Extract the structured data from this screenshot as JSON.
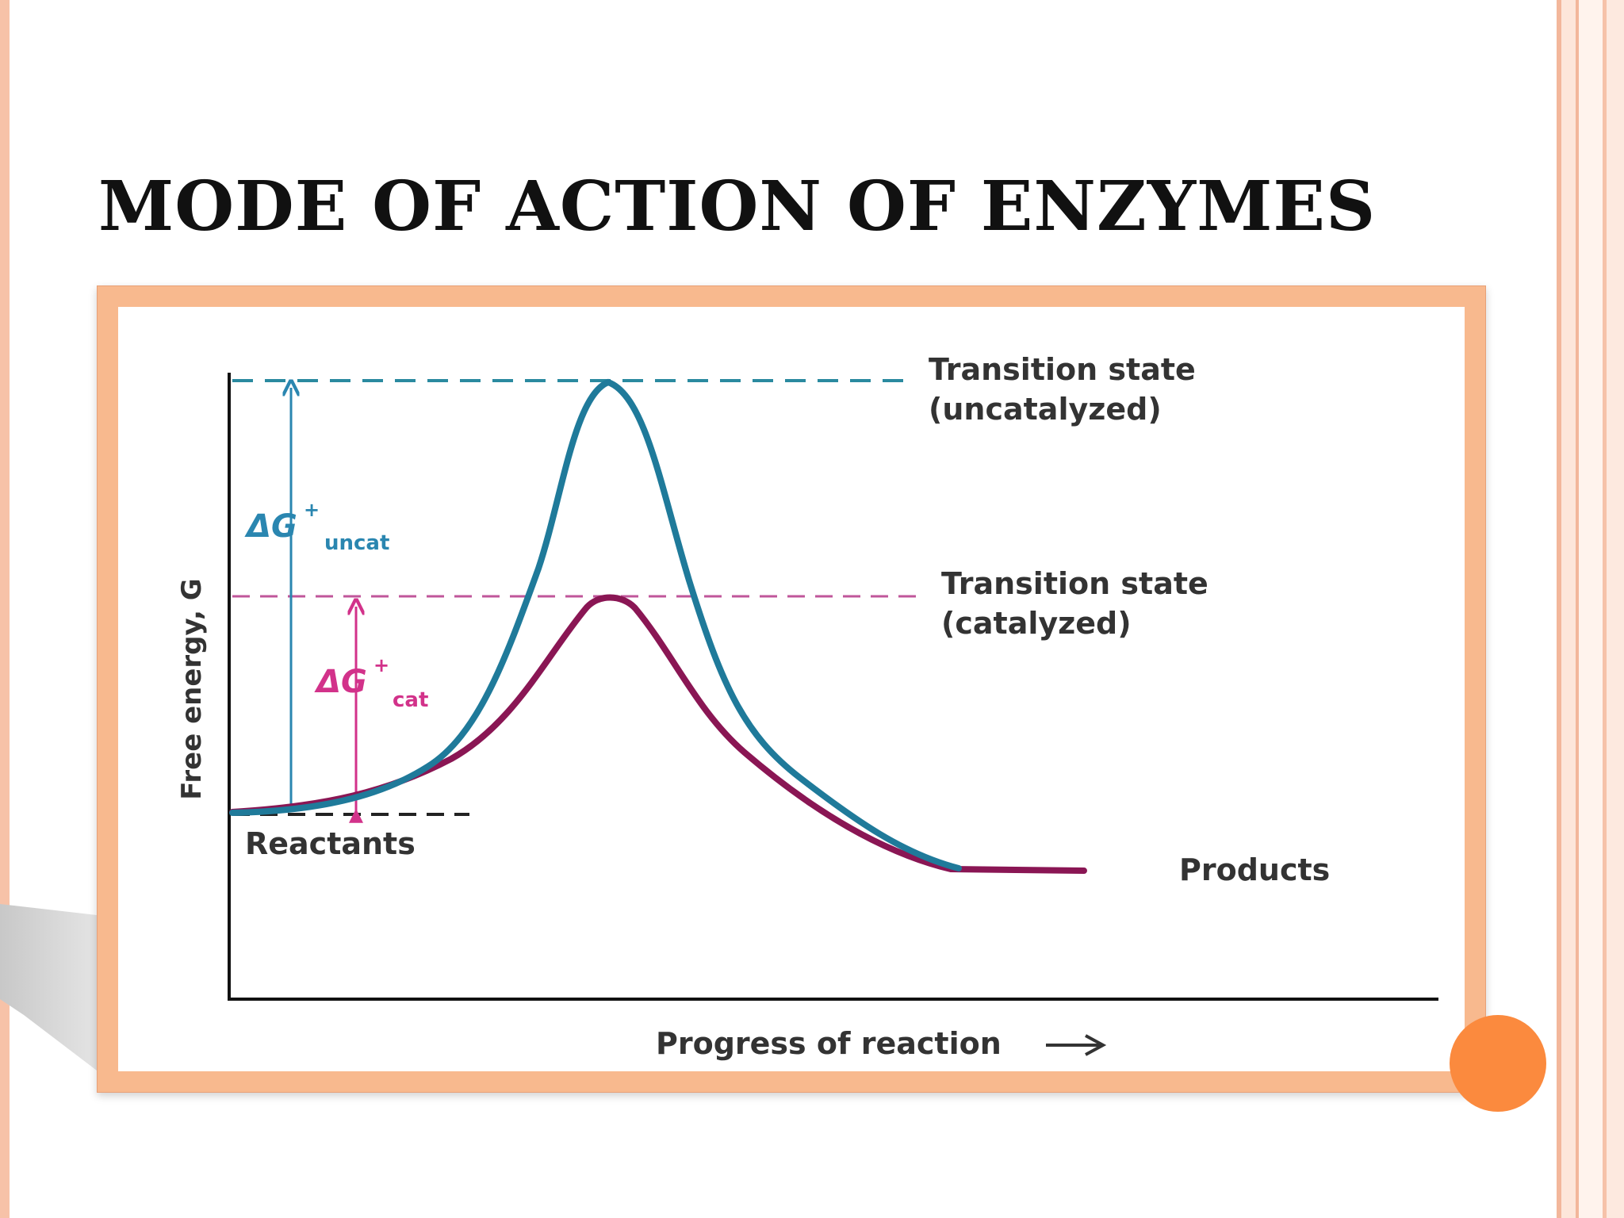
{
  "slide": {
    "title": "MODE OF ACTION OF ENZYMES"
  },
  "diagram": {
    "y_axis_label": "Free energy, G",
    "x_axis_label": "Progress of reaction",
    "transition_uncat": [
      "Transition state",
      "(uncatalyzed)"
    ],
    "transition_cat": [
      "Transition state",
      "(catalyzed)"
    ],
    "reactants_label": "Reactants",
    "products_label": "Products",
    "delta_uncat": {
      "main": "ΔG",
      "sup": "+",
      "sub": "uncat"
    },
    "delta_cat": {
      "main": "ΔG",
      "sup": "+",
      "sub": "cat"
    },
    "colors": {
      "uncatalyzed": "#1f7a9a",
      "catalyzed": "#8a1654",
      "cat_dashed": "#c0569a",
      "cat_arrow": "#d2328a",
      "axis": "#111111",
      "text": "#333333",
      "frame": "#f8b98e",
      "accent_dot": "#fb8a3e"
    }
  }
}
